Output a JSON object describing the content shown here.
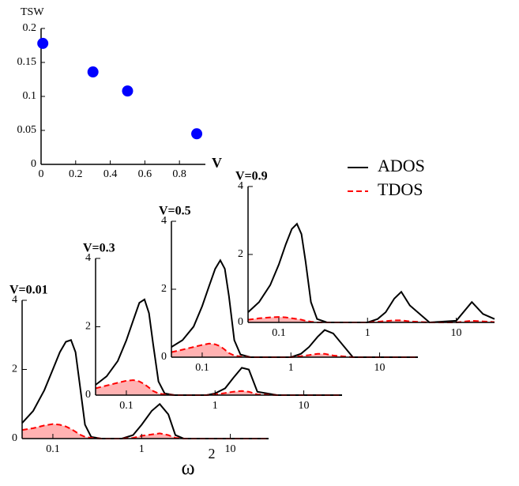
{
  "chart_data": [
    {
      "type": "scatter",
      "xlabel": "V",
      "ylabel": "TSW",
      "color": "#0000ff",
      "x": [
        0.01,
        0.3,
        0.5,
        0.9
      ],
      "values": [
        0.178,
        0.136,
        0.108,
        0.045
      ],
      "xlim": [
        0,
        0.95
      ],
      "xticks": [
        0,
        0.2,
        0.4,
        0.6,
        0.8
      ],
      "ylim": [
        0,
        0.2
      ],
      "yticks": [
        0,
        0.05,
        0.1,
        0.15,
        0.2
      ]
    },
    {
      "type": "line",
      "title": "V=0.01",
      "xlabel": "ω",
      "annotation": "2",
      "log_x": true,
      "x": [
        0.045,
        0.06,
        0.08,
        0.1,
        0.12,
        0.14,
        0.16,
        0.18,
        0.2,
        0.23,
        0.27,
        0.35,
        0.6,
        0.8,
        1,
        1.3,
        1.6,
        2,
        2.4,
        3,
        5,
        10,
        15,
        20,
        27
      ],
      "xlim": [
        0.045,
        27
      ],
      "xticks": [
        0.1,
        1,
        10
      ],
      "ylim": [
        0,
        4
      ],
      "yticks": [
        0,
        2,
        4
      ],
      "series": [
        {
          "color": "#000000",
          "values": [
            0.45,
            0.8,
            1.4,
            2.0,
            2.5,
            2.8,
            2.85,
            2.5,
            1.6,
            0.4,
            0.05,
            0,
            0,
            0.1,
            0.4,
            0.8,
            1.0,
            0.7,
            0.1,
            0,
            0,
            0,
            0,
            0,
            0
          ]
        },
        {
          "color": "#ff0000",
          "values": [
            0.25,
            0.3,
            0.38,
            0.42,
            0.4,
            0.35,
            0.28,
            0.2,
            0.12,
            0.05,
            0.02,
            0,
            0,
            0.02,
            0.08,
            0.12,
            0.15,
            0.1,
            0.02,
            0,
            0,
            0,
            0,
            0,
            0
          ]
        }
      ]
    },
    {
      "type": "line",
      "title": "V=0.3",
      "log_x": true,
      "x": [
        0.045,
        0.06,
        0.08,
        0.1,
        0.12,
        0.14,
        0.16,
        0.18,
        0.2,
        0.23,
        0.27,
        0.35,
        0.6,
        0.8,
        1,
        1.3,
        1.6,
        2,
        2.4,
        3,
        5,
        10,
        15,
        20,
        27
      ],
      "xlim": [
        0.045,
        27
      ],
      "xticks": [
        0.1,
        1,
        10
      ],
      "ylim": [
        0,
        4
      ],
      "yticks": [
        0,
        2,
        4
      ],
      "series": [
        {
          "color": "#000000",
          "values": [
            0.3,
            0.55,
            1.0,
            1.6,
            2.2,
            2.7,
            2.8,
            2.4,
            1.5,
            0.4,
            0.05,
            0,
            0,
            0,
            0.05,
            0.2,
            0.5,
            0.8,
            0.75,
            0.1,
            0,
            0,
            0,
            0,
            0
          ]
        },
        {
          "color": "#ff0000",
          "values": [
            0.2,
            0.28,
            0.36,
            0.42,
            0.44,
            0.4,
            0.32,
            0.22,
            0.12,
            0.05,
            0.02,
            0,
            0,
            0,
            0.02,
            0.06,
            0.1,
            0.12,
            0.1,
            0.02,
            0,
            0,
            0,
            0,
            0
          ]
        }
      ]
    },
    {
      "type": "line",
      "title": "V=0.5",
      "log_x": true,
      "x": [
        0.045,
        0.06,
        0.08,
        0.1,
        0.12,
        0.14,
        0.16,
        0.18,
        0.2,
        0.23,
        0.27,
        0.35,
        0.6,
        0.8,
        1,
        1.3,
        1.6,
        2,
        2.4,
        3,
        5,
        10,
        15,
        20,
        27
      ],
      "xlim": [
        0.045,
        27
      ],
      "xticks": [
        0.1,
        1,
        10
      ],
      "ylim": [
        0,
        4
      ],
      "yticks": [
        0,
        2,
        4
      ],
      "series": [
        {
          "color": "#000000",
          "values": [
            0.3,
            0.5,
            0.9,
            1.5,
            2.1,
            2.6,
            2.85,
            2.6,
            1.8,
            0.5,
            0.08,
            0,
            0,
            0,
            0,
            0.1,
            0.3,
            0.6,
            0.8,
            0.7,
            0,
            0,
            0,
            0,
            0
          ]
        },
        {
          "color": "#ff0000",
          "values": [
            0.15,
            0.22,
            0.3,
            0.36,
            0.4,
            0.38,
            0.32,
            0.22,
            0.12,
            0.05,
            0.02,
            0,
            0,
            0,
            0,
            0.03,
            0.06,
            0.1,
            0.1,
            0.05,
            0,
            0,
            0,
            0,
            0
          ]
        }
      ]
    },
    {
      "type": "line",
      "title": "V=0.9",
      "log_x": true,
      "x": [
        0.045,
        0.06,
        0.08,
        0.1,
        0.12,
        0.14,
        0.16,
        0.18,
        0.2,
        0.23,
        0.27,
        0.35,
        0.6,
        0.8,
        1,
        1.3,
        1.6,
        2,
        2.4,
        3,
        5,
        10,
        15,
        20,
        27
      ],
      "xlim": [
        0.045,
        27
      ],
      "xticks": [
        0.1,
        1,
        10
      ],
      "ylim": [
        0,
        4
      ],
      "yticks": [
        0,
        2,
        4
      ],
      "series": [
        {
          "name": "ADOS",
          "color": "#000000",
          "values": [
            0.3,
            0.6,
            1.1,
            1.7,
            2.3,
            2.75,
            2.9,
            2.6,
            1.8,
            0.6,
            0.1,
            0,
            0,
            0,
            0,
            0.1,
            0.3,
            0.7,
            0.9,
            0.5,
            0,
            0.05,
            0.6,
            0.25,
            0.1
          ]
        },
        {
          "name": "TDOS",
          "color": "#ff0000",
          "values": [
            0.08,
            0.12,
            0.15,
            0.16,
            0.15,
            0.12,
            0.1,
            0.08,
            0.05,
            0.02,
            0,
            0,
            0,
            0,
            0,
            0.02,
            0.04,
            0.06,
            0.06,
            0.03,
            0,
            0,
            0.05,
            0.03,
            0.01
          ]
        }
      ]
    }
  ]
}
